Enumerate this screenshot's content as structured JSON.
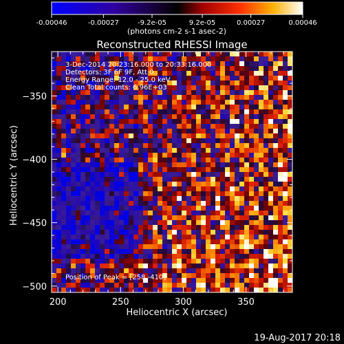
{
  "chart_data": {
    "type": "heatmap",
    "title": "Reconstructed RHESSI Image",
    "xlabel": "Heliocentric X (arcsec)",
    "ylabel": "Heliocentric Y (arcsec)",
    "xlim": [
      195,
      387
    ],
    "ylim": [
      -505,
      -315
    ],
    "x_ticks": [
      200,
      250,
      300,
      350
    ],
    "y_ticks": [
      -350,
      -400,
      -450,
      -500
    ],
    "colorbar": {
      "range": [
        -0.00046,
        0.00046
      ],
      "tick_values": [
        -0.00046,
        -0.00027,
        -9.2e-05,
        9.2e-05,
        0.00027,
        0.00046
      ],
      "tick_labels": [
        "-0.00046",
        "-0.00027",
        "-9.2e-05",
        "9.2e-05",
        "0.00027",
        "0.00046"
      ],
      "units": "(photons cm-2 s-1 asec-2)",
      "colors": [
        "#0000ff",
        "#200080",
        "#000000",
        "#c00000",
        "#ff8000",
        "#ffffff"
      ]
    },
    "annotations": [
      "3-Dec-2014 20:23:16.000 to 20:33:16.000",
      "Detectors: 3F 6F 9F, Att 0",
      "Energy Range: 12.0 - 25.0 keV",
      "Clean     Total counts: 6.96E+03"
    ],
    "peak_label": "Position of Peak = [258,-410]",
    "peak": [
      258,
      -410
    ],
    "grid": false
  },
  "footer": {
    "timestamp": "19-Aug-2017 20:18"
  }
}
